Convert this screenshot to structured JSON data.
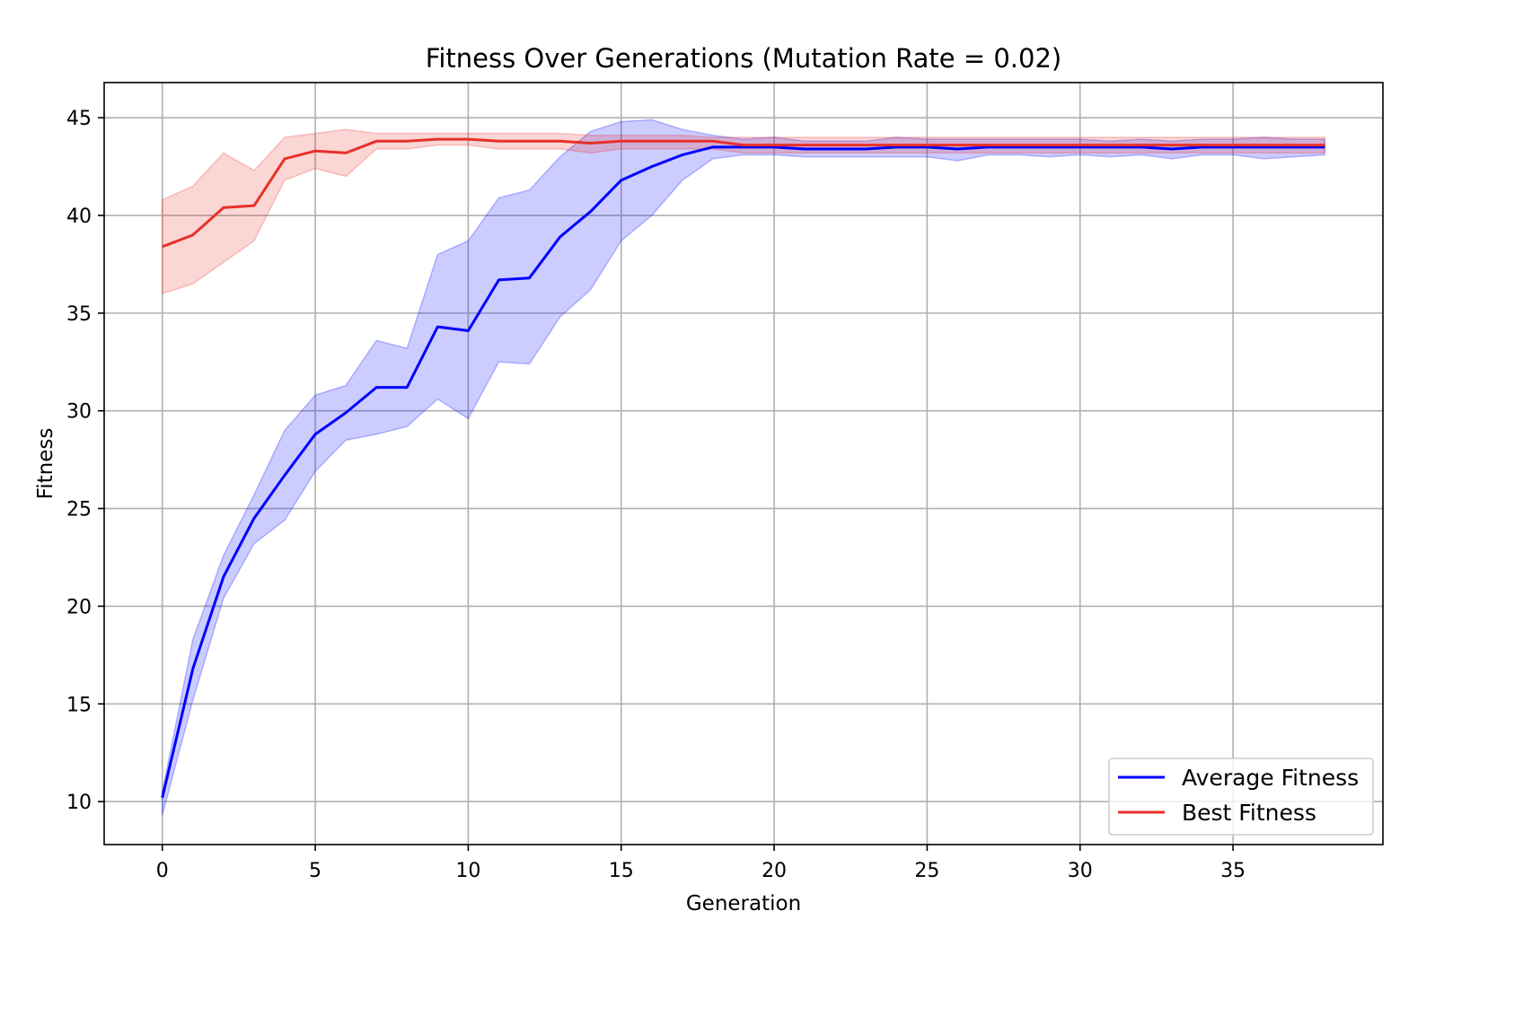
{
  "chart_data": {
    "type": "line",
    "title": "Fitness Over Generations (Mutation Rate = 0.02)",
    "xlabel": "Generation",
    "ylabel": "Fitness",
    "xlim": [
      -1.9,
      39.9
    ],
    "ylim": [
      7.8,
      46.8
    ],
    "xticks": [
      0,
      5,
      10,
      15,
      20,
      25,
      30,
      35
    ],
    "yticks": [
      10,
      15,
      20,
      25,
      30,
      35,
      40,
      45
    ],
    "grid": true,
    "legend_position": "lower-right",
    "x": [
      0,
      1,
      2,
      3,
      4,
      5,
      6,
      7,
      8,
      9,
      10,
      11,
      12,
      13,
      14,
      15,
      16,
      17,
      18,
      19,
      20,
      21,
      22,
      23,
      24,
      25,
      26,
      27,
      28,
      29,
      30,
      31,
      32,
      33,
      34,
      35,
      36,
      37,
      38
    ],
    "series": [
      {
        "name": "Average Fitness",
        "color": "#0000ff",
        "band_color": "#0000ff",
        "values": [
          10.2,
          16.8,
          21.5,
          24.5,
          26.7,
          28.8,
          29.9,
          31.2,
          31.2,
          34.3,
          34.1,
          36.7,
          36.8,
          38.9,
          40.2,
          41.8,
          42.5,
          43.1,
          43.5,
          43.5,
          43.5,
          43.4,
          43.4,
          43.4,
          43.5,
          43.5,
          43.4,
          43.5,
          43.5,
          43.5,
          43.5,
          43.5,
          43.5,
          43.4,
          43.5,
          43.5,
          43.5,
          43.5,
          43.5
        ],
        "lower": [
          9.3,
          15.2,
          20.4,
          23.2,
          24.4,
          26.9,
          28.5,
          28.8,
          29.2,
          30.6,
          29.6,
          32.5,
          32.4,
          34.8,
          36.2,
          38.7,
          40.0,
          41.8,
          42.9,
          43.1,
          43.1,
          43.0,
          43.0,
          43.0,
          43.0,
          43.0,
          42.8,
          43.1,
          43.1,
          43.0,
          43.1,
          43.0,
          43.1,
          42.9,
          43.1,
          43.1,
          42.9,
          43.0,
          43.1
        ],
        "upper": [
          10.5,
          18.3,
          22.6,
          25.7,
          29.0,
          30.8,
          31.3,
          33.6,
          33.2,
          38.0,
          38.7,
          40.9,
          41.3,
          43.0,
          44.3,
          44.8,
          44.9,
          44.4,
          44.1,
          43.9,
          44.0,
          43.8,
          43.8,
          43.8,
          44.0,
          43.9,
          43.9,
          43.9,
          43.9,
          43.9,
          43.9,
          43.8,
          43.9,
          43.8,
          43.9,
          43.9,
          44.0,
          43.9,
          43.9
        ]
      },
      {
        "name": "Best Fitness",
        "color": "#e8302a",
        "band_color": "#e8302a",
        "values": [
          38.4,
          39.0,
          40.4,
          40.5,
          42.9,
          43.3,
          43.2,
          43.8,
          43.8,
          43.9,
          43.9,
          43.8,
          43.8,
          43.8,
          43.7,
          43.8,
          43.8,
          43.8,
          43.8,
          43.6,
          43.6,
          43.6,
          43.6,
          43.6,
          43.6,
          43.6,
          43.6,
          43.6,
          43.6,
          43.6,
          43.6,
          43.6,
          43.6,
          43.6,
          43.6,
          43.6,
          43.6,
          43.6,
          43.6
        ],
        "lower": [
          36.0,
          36.5,
          37.6,
          38.7,
          41.8,
          42.4,
          42.0,
          43.4,
          43.4,
          43.6,
          43.6,
          43.4,
          43.4,
          43.4,
          43.2,
          43.4,
          43.4,
          43.4,
          43.4,
          43.2,
          43.2,
          43.2,
          43.2,
          43.2,
          43.2,
          43.2,
          43.2,
          43.2,
          43.2,
          43.2,
          43.2,
          43.2,
          43.2,
          43.2,
          43.2,
          43.2,
          43.2,
          43.2,
          43.2
        ],
        "upper": [
          40.8,
          41.5,
          43.2,
          42.3,
          44.0,
          44.2,
          44.4,
          44.2,
          44.2,
          44.2,
          44.2,
          44.2,
          44.2,
          44.2,
          44.1,
          44.1,
          44.1,
          44.1,
          44.0,
          44.0,
          44.0,
          44.0,
          44.0,
          44.0,
          44.0,
          44.0,
          44.0,
          44.0,
          44.0,
          44.0,
          44.0,
          44.0,
          44.0,
          44.0,
          44.0,
          44.0,
          44.0,
          44.0,
          44.0
        ]
      }
    ]
  }
}
